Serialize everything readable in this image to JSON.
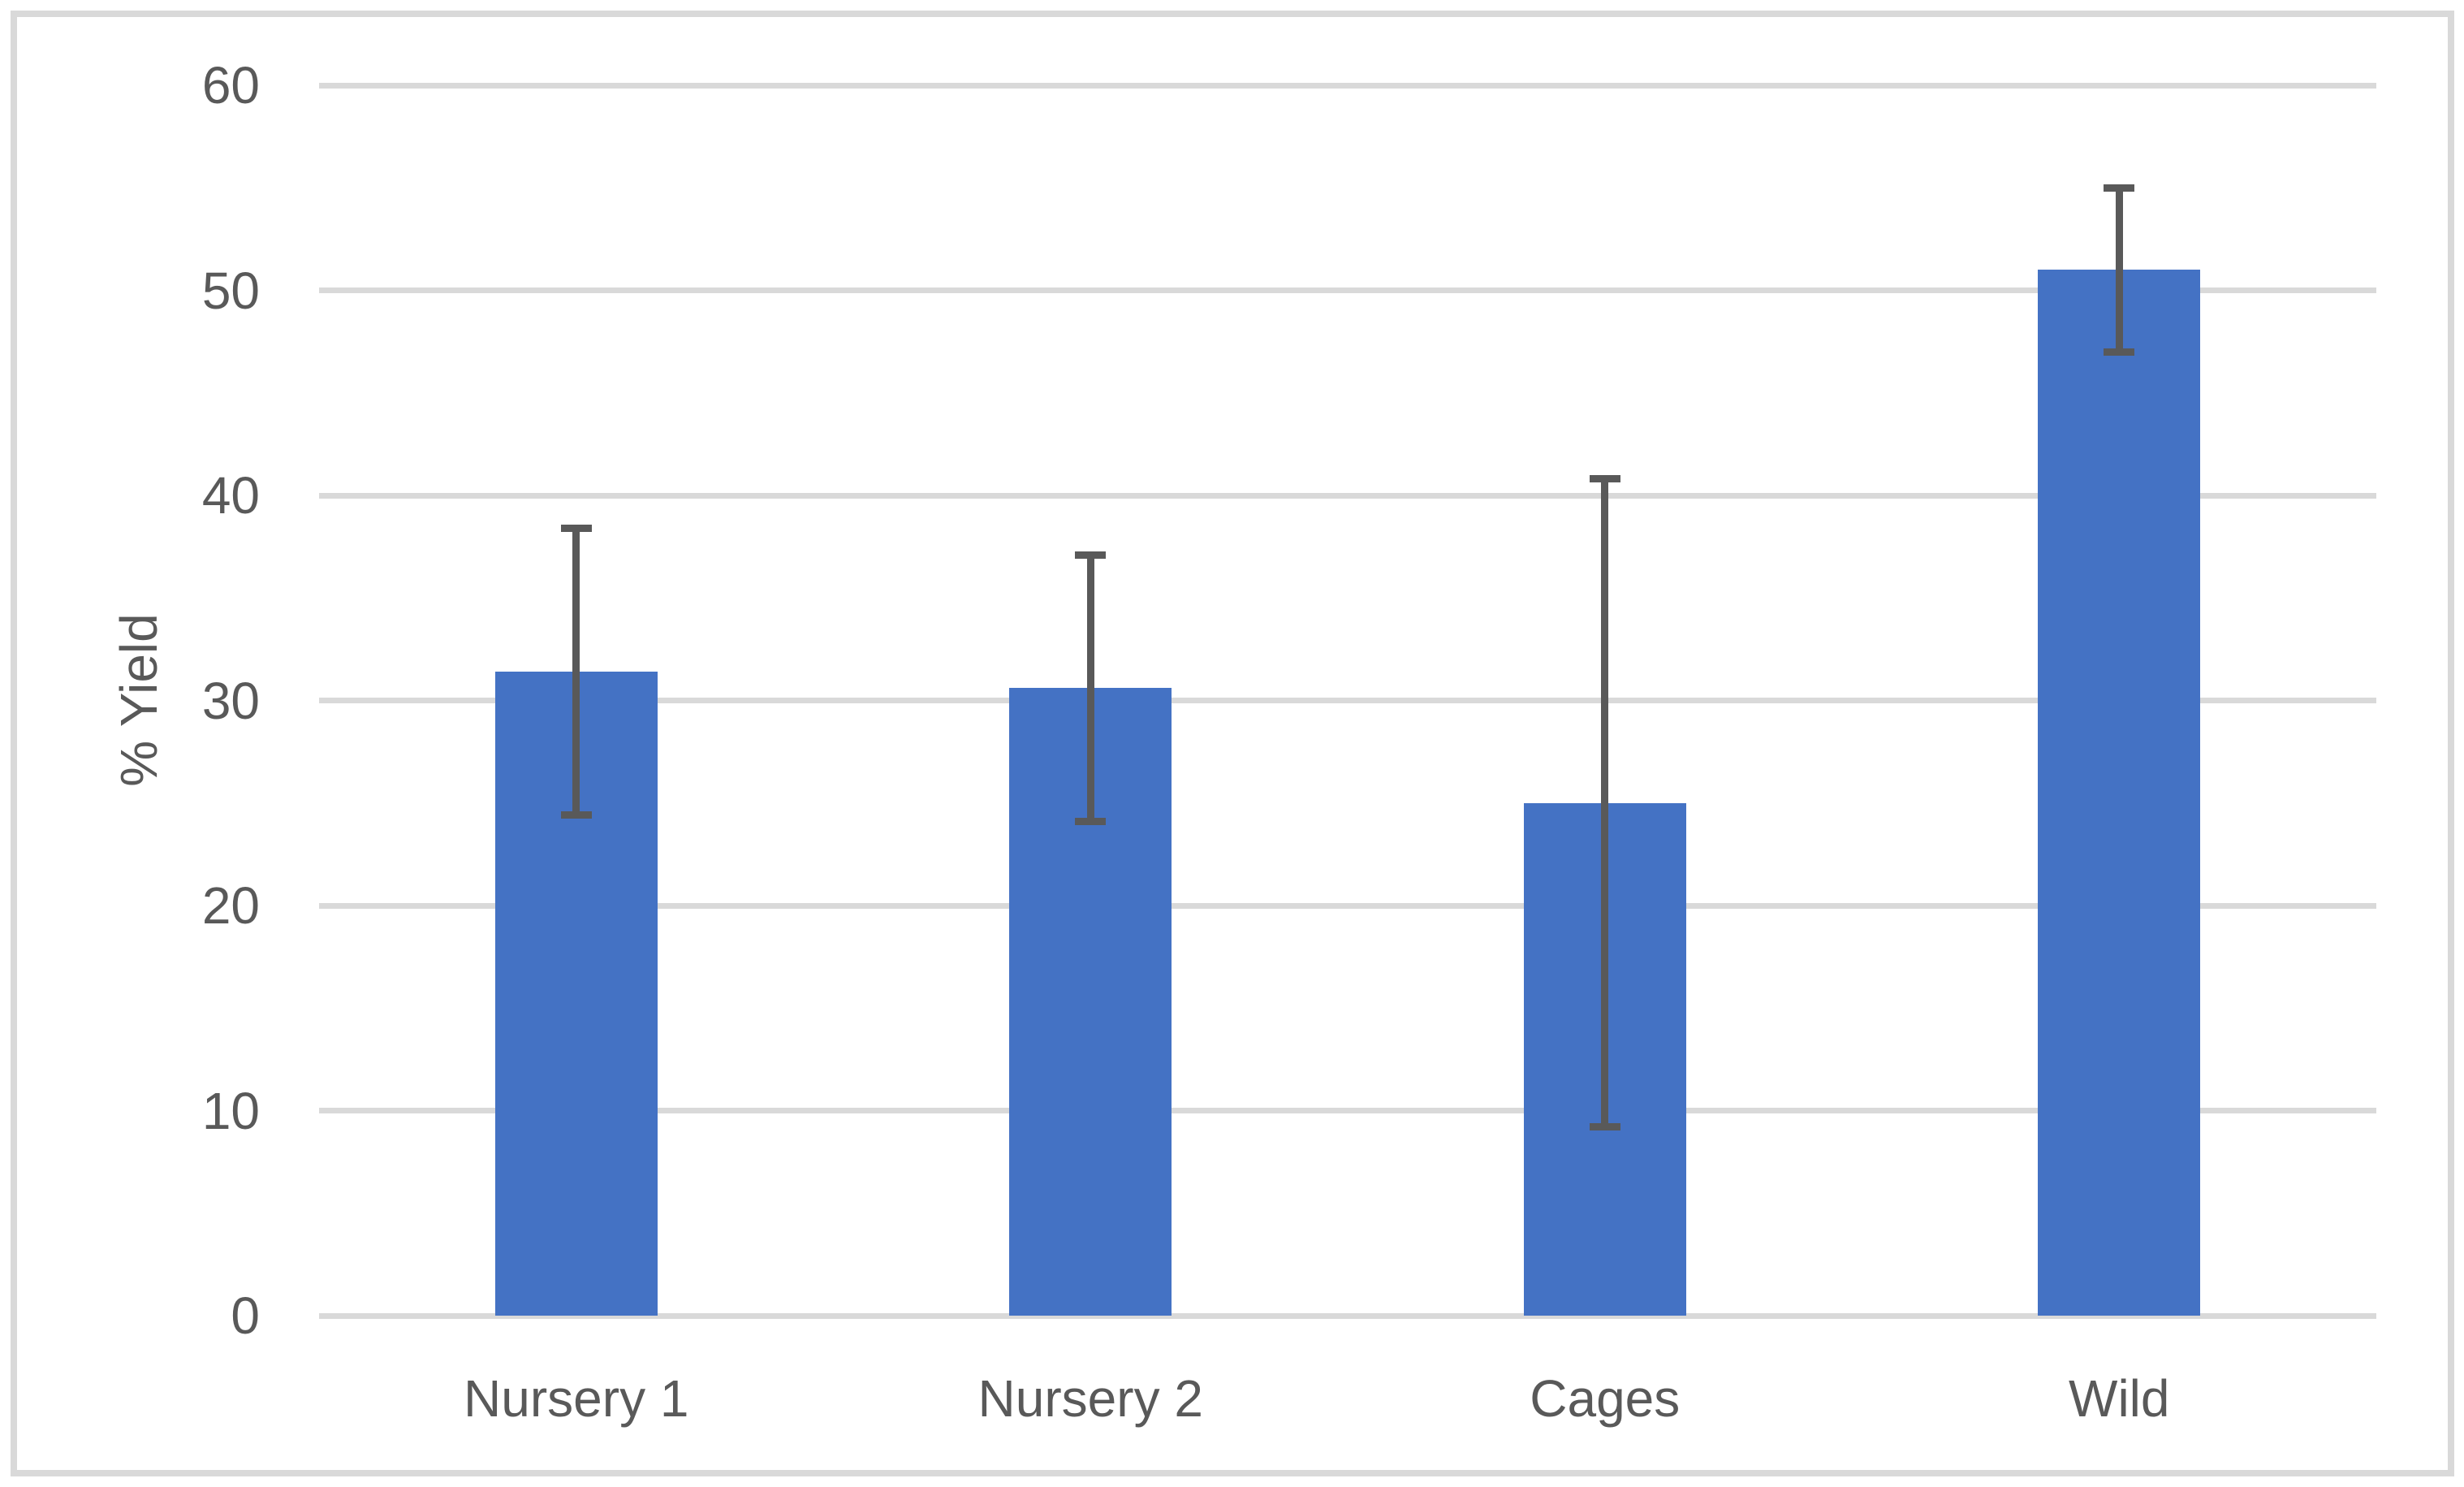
{
  "chart_data": {
    "type": "bar",
    "title": "",
    "categories": [
      "Nursery 1",
      "Nursery 2",
      "Cages",
      "Wild"
    ],
    "values": [
      31.4,
      30.6,
      25.0,
      51.0
    ],
    "errors": [
      7.0,
      6.5,
      15.8,
      4.0
    ],
    "series": [
      {
        "name": "% Yield",
        "values": [
          31.4,
          30.6,
          25.0,
          51.0
        ],
        "error_top": [
          38.4,
          37.1,
          40.8,
          55.0
        ],
        "error_bottom": [
          24.4,
          24.1,
          9.2,
          47.0
        ]
      }
    ],
    "xlabel": "",
    "ylabel": "% Yield",
    "ylim": [
      0,
      60
    ],
    "yticks": [
      0,
      10,
      20,
      30,
      40,
      50,
      60
    ],
    "grid": "horizontal",
    "legend_position": "none",
    "bar_color": "#4472C4",
    "error_bar_color": "#595959",
    "gridline_color": "#D9D9D9",
    "text_color": "#595959",
    "border_color": "#D9D9D9",
    "background_color": "#FFFFFF"
  }
}
